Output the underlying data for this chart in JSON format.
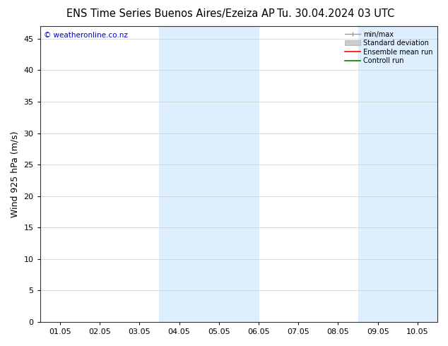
{
  "title_left": "ENS Time Series Buenos Aires/Ezeiza AP",
  "title_right": "Tu. 30.04.2024 03 UTC",
  "ylabel": "Wind 925 hPa (m/s)",
  "watermark": "© weatheronline.co.nz",
  "watermark_color": "#0000cc",
  "ylim": [
    0,
    47
  ],
  "yticks": [
    0,
    5,
    10,
    15,
    20,
    25,
    30,
    35,
    40,
    45
  ],
  "xtick_labels": [
    "01.05",
    "02.05",
    "03.05",
    "04.05",
    "05.05",
    "06.05",
    "07.05",
    "08.05",
    "09.05",
    "10.05"
  ],
  "xtick_positions": [
    1,
    2,
    3,
    4,
    5,
    6,
    7,
    8,
    9,
    10
  ],
  "xlim": [
    0.5,
    10.5
  ],
  "shaded_regions": [
    {
      "xmin": 3.5,
      "xmax": 6.0,
      "color": "#ddeeff"
    },
    {
      "xmin": 8.5,
      "xmax": 10.5,
      "color": "#ddeeff"
    }
  ],
  "legend_items": [
    {
      "label": "min/max"
    },
    {
      "label": "Standard deviation"
    },
    {
      "label": "Ensemble mean run"
    },
    {
      "label": "Controll run"
    }
  ],
  "legend_colors": [
    "#999999",
    "#cccccc",
    "#ff0000",
    "#008000"
  ],
  "bg_color": "#ffffff",
  "plot_bg_color": "#ffffff",
  "grid_color": "#cccccc",
  "title_fontsize": 10.5,
  "label_fontsize": 9,
  "tick_fontsize": 8
}
